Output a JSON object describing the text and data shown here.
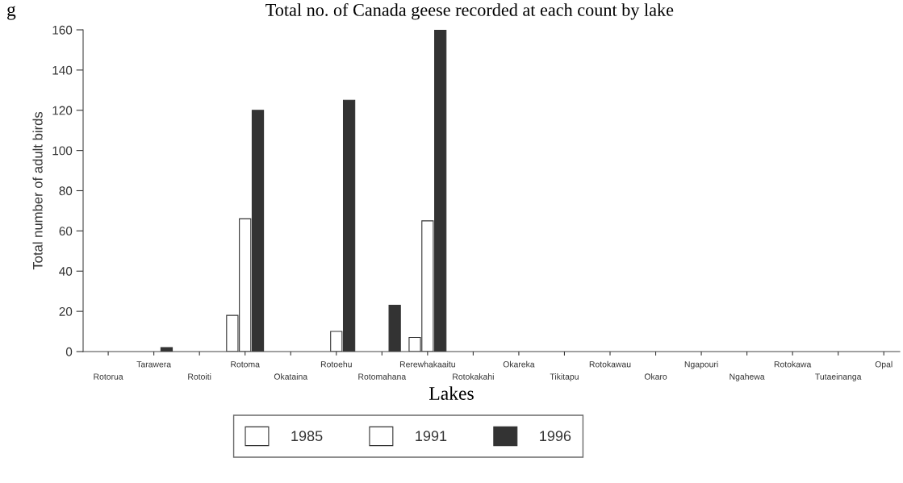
{
  "chart_data": {
    "type": "bar",
    "title": "Total no. of Canada geese recorded at each count by lake",
    "xlabel": "Lakes",
    "ylabel": "Total number of adult birds",
    "annotations": [
      "g"
    ],
    "categories": [
      "Rotorua",
      "Tarawera",
      "Rotoiti",
      "Rotoma",
      "Okataina",
      "Rotoehu",
      "Rotomahana",
      "Rerewhakaaitu",
      "Rotokakahi",
      "Okareka",
      "Tikitapu",
      "Rotokawau",
      "Okaro",
      "Ngapouri",
      "Ngahewa",
      "Rotokawa",
      "Tutaeinanga",
      "Opal"
    ],
    "series": [
      {
        "name": "1985",
        "color": "#ffffff",
        "values": [
          0,
          0,
          0,
          18,
          0,
          0,
          0,
          7,
          0,
          0,
          0,
          0,
          0,
          0,
          0,
          0,
          0,
          0
        ]
      },
      {
        "name": "1991",
        "color": "#ffffff",
        "values": [
          0,
          0,
          0,
          66,
          0,
          10,
          0,
          65,
          0,
          0,
          0,
          0,
          0,
          0,
          0,
          0,
          0,
          0
        ]
      },
      {
        "name": "1996",
        "color": "#333333",
        "values": [
          0,
          2,
          0,
          120,
          0,
          125,
          23,
          160,
          0,
          0,
          0,
          0,
          0,
          0,
          0,
          0,
          0,
          0
        ]
      }
    ],
    "ylim": [
      0,
      160
    ],
    "yticks": [
      0,
      20,
      40,
      60,
      80,
      100,
      120,
      140,
      160
    ],
    "grid": false,
    "legend": "bottom"
  }
}
